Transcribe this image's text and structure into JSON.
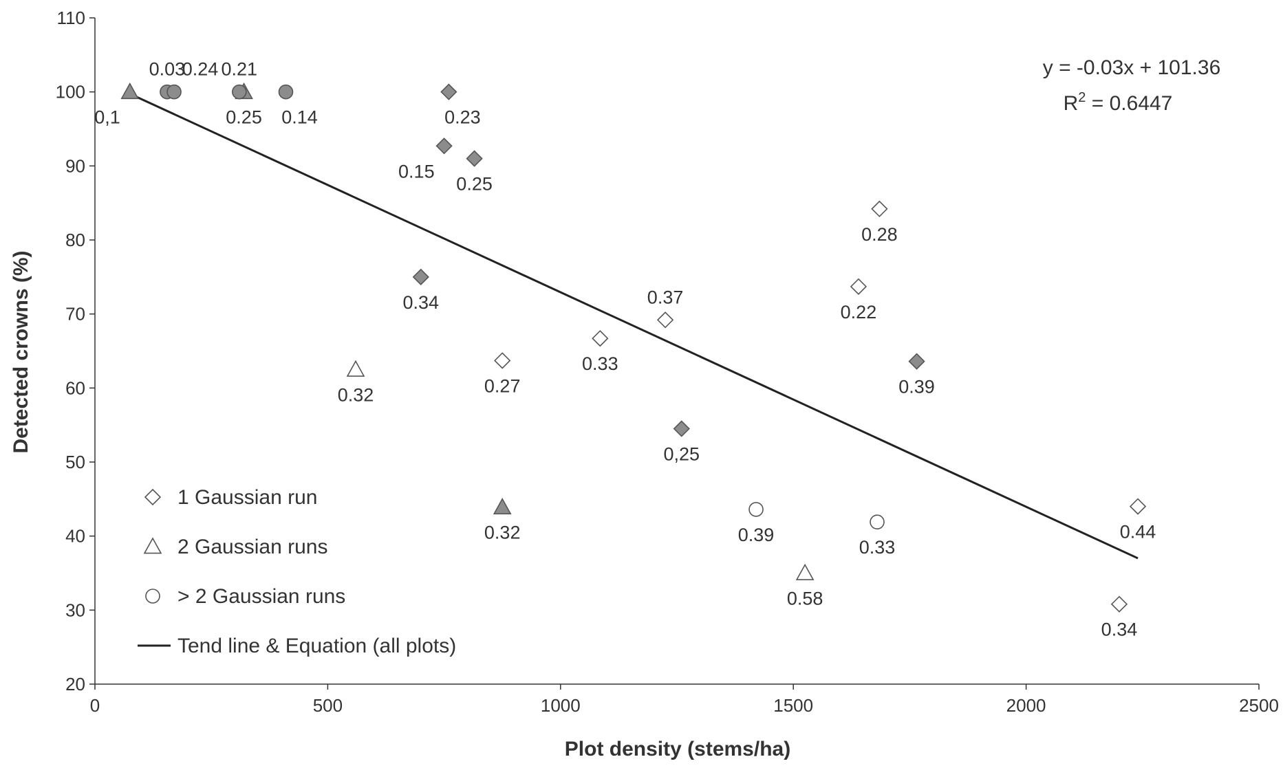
{
  "chart_data": {
    "type": "scatter",
    "xlabel": "Plot density (stems/ha)",
    "ylabel": "Detected crowns (%)",
    "xlim": [
      0,
      2500
    ],
    "ylim": [
      20,
      110
    ],
    "x_ticks": [
      "0",
      "500",
      "1000",
      "1500",
      "2000",
      "2500"
    ],
    "y_ticks": [
      "20",
      "30",
      "40",
      "50",
      "60",
      "70",
      "80",
      "90",
      "100",
      "110"
    ],
    "grid": false,
    "legend_position": "bottom-left",
    "legend": [
      {
        "marker": "diamond",
        "label": "1 Gaussian run"
      },
      {
        "marker": "triangle",
        "label": "2 Gaussian runs"
      },
      {
        "marker": "circle",
        "label": "> 2 Gaussian runs"
      },
      {
        "marker": "line",
        "label": "Tend line & Equation (all plots)"
      }
    ],
    "equation": "y = -0.03x + 101.36",
    "r2_prefix": "R",
    "r2_sup": "2",
    "r2_value": " = 0.6447",
    "trendline": {
      "x": [
        80,
        2240
      ],
      "y": [
        99.6,
        37.0
      ]
    },
    "colors": {
      "filled": "#8c8c8c",
      "hollow": "#ffffff",
      "stroke": "#555555",
      "line": "#222222"
    },
    "points": [
      {
        "x": 75,
        "y": 100,
        "marker": "triangle",
        "filled": true,
        "label": "0,1",
        "label_pos": "below-left"
      },
      {
        "x": 155,
        "y": 100,
        "marker": "circle",
        "filled": true,
        "label": "0.03",
        "label_pos": "above"
      },
      {
        "x": 170,
        "y": 100,
        "marker": "circle",
        "filled": true,
        "label": "0.24",
        "label_pos": "above-right"
      },
      {
        "x": 320,
        "y": 100,
        "marker": "triangle",
        "filled": true,
        "label": "0.25",
        "label_pos": "below"
      },
      {
        "x": 310,
        "y": 100,
        "marker": "circle",
        "filled": true,
        "label": "0.21",
        "label_pos": "above"
      },
      {
        "x": 410,
        "y": 100,
        "marker": "circle",
        "filled": true,
        "label": "0.14",
        "label_pos": "below-right"
      },
      {
        "x": 760,
        "y": 100,
        "marker": "diamond",
        "filled": true,
        "label": "0.23",
        "label_pos": "below-right"
      },
      {
        "x": 750,
        "y": 92.7,
        "marker": "diamond",
        "filled": true,
        "label": "0.15",
        "label_pos": "below-left"
      },
      {
        "x": 815,
        "y": 91,
        "marker": "diamond",
        "filled": true,
        "label": "0.25",
        "label_pos": "below"
      },
      {
        "x": 700,
        "y": 75,
        "marker": "diamond",
        "filled": true,
        "label": "0.34",
        "label_pos": "below"
      },
      {
        "x": 560,
        "y": 62.5,
        "marker": "triangle",
        "filled": false,
        "label": "0.32",
        "label_pos": "below"
      },
      {
        "x": 875,
        "y": 63.7,
        "marker": "diamond",
        "filled": false,
        "label": "0.27",
        "label_pos": "below"
      },
      {
        "x": 875,
        "y": 43.9,
        "marker": "triangle",
        "filled": true,
        "label": "0.32",
        "label_pos": "below"
      },
      {
        "x": 1085,
        "y": 66.7,
        "marker": "diamond",
        "filled": false,
        "label": "0.33",
        "label_pos": "below"
      },
      {
        "x": 1225,
        "y": 69.2,
        "marker": "diamond",
        "filled": false,
        "label": "0.37",
        "label_pos": "above"
      },
      {
        "x": 1260,
        "y": 54.5,
        "marker": "diamond",
        "filled": true,
        "label": "0,25",
        "label_pos": "below"
      },
      {
        "x": 1420,
        "y": 43.6,
        "marker": "circle",
        "filled": false,
        "label": "0.39",
        "label_pos": "below"
      },
      {
        "x": 1525,
        "y": 35,
        "marker": "triangle",
        "filled": false,
        "label": "0.58",
        "label_pos": "below"
      },
      {
        "x": 1640,
        "y": 73.7,
        "marker": "diamond",
        "filled": false,
        "label": "0.22",
        "label_pos": "below"
      },
      {
        "x": 1685,
        "y": 84.2,
        "marker": "diamond",
        "filled": false,
        "label": "0.28",
        "label_pos": "below"
      },
      {
        "x": 1680,
        "y": 41.9,
        "marker": "circle",
        "filled": false,
        "label": "0.33",
        "label_pos": "below"
      },
      {
        "x": 1765,
        "y": 63.6,
        "marker": "diamond",
        "filled": true,
        "label": "0.39",
        "label_pos": "below"
      },
      {
        "x": 2240,
        "y": 44,
        "marker": "diamond",
        "filled": false,
        "label": "0.44",
        "label_pos": "below"
      },
      {
        "x": 2200,
        "y": 30.8,
        "marker": "diamond",
        "filled": false,
        "label": "0.34",
        "label_pos": "below"
      }
    ]
  }
}
